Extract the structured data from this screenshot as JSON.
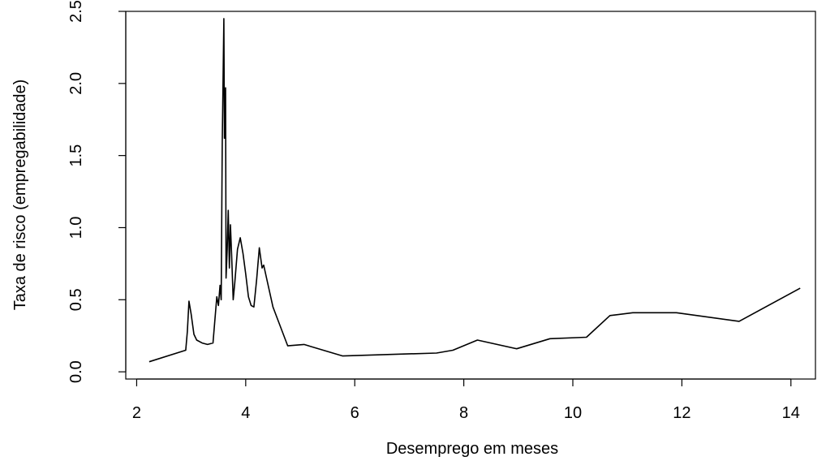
{
  "chart_data": {
    "type": "line",
    "xlabel": "Desemprego em meses",
    "ylabel": "Taxa de risco (empregabilidade)",
    "xlim": [
      1.8,
      14.45
    ],
    "ylim": [
      -0.05,
      2.5
    ],
    "xticks": [
      2,
      4,
      6,
      8,
      10,
      12,
      14
    ],
    "yticks": [
      0.0,
      0.5,
      1.0,
      1.5,
      2.0,
      2.5
    ],
    "xtick_labels": [
      "2",
      "4",
      "6",
      "8",
      "10",
      "12",
      "14"
    ],
    "ytick_labels": [
      "0.0",
      "0.5",
      "1.0",
      "1.5",
      "2.0",
      "2.5"
    ],
    "grid": false,
    "series": [
      {
        "x": [
          2.23,
          2.9,
          2.93,
          2.96,
          3.0,
          3.05,
          3.1,
          3.2,
          3.3,
          3.4,
          3.47,
          3.5,
          3.53,
          3.55,
          3.57,
          3.6,
          3.61,
          3.63,
          3.64,
          3.66,
          3.68,
          3.7,
          3.72,
          3.74,
          3.77,
          3.8,
          3.85,
          3.9,
          3.95,
          4.0,
          4.05,
          4.1,
          4.15,
          4.2,
          4.25,
          4.3,
          4.33,
          4.4,
          4.5,
          4.6,
          4.77,
          5.07,
          5.78,
          6.6,
          7.5,
          7.8,
          8.25,
          8.97,
          9.58,
          10.25,
          10.68,
          11.1,
          11.9,
          13.05,
          14.17
        ],
        "y": [
          0.07,
          0.15,
          0.28,
          0.49,
          0.4,
          0.26,
          0.22,
          0.2,
          0.19,
          0.2,
          0.52,
          0.46,
          0.6,
          0.5,
          1.58,
          2.45,
          1.62,
          1.97,
          0.65,
          0.85,
          1.12,
          0.72,
          1.02,
          0.82,
          0.5,
          0.62,
          0.85,
          0.93,
          0.82,
          0.68,
          0.52,
          0.46,
          0.45,
          0.64,
          0.86,
          0.72,
          0.74,
          0.62,
          0.45,
          0.35,
          0.18,
          0.19,
          0.11,
          0.12,
          0.13,
          0.15,
          0.22,
          0.16,
          0.23,
          0.24,
          0.39,
          0.41,
          0.41,
          0.35,
          0.58
        ],
        "color": "#000000"
      }
    ]
  }
}
